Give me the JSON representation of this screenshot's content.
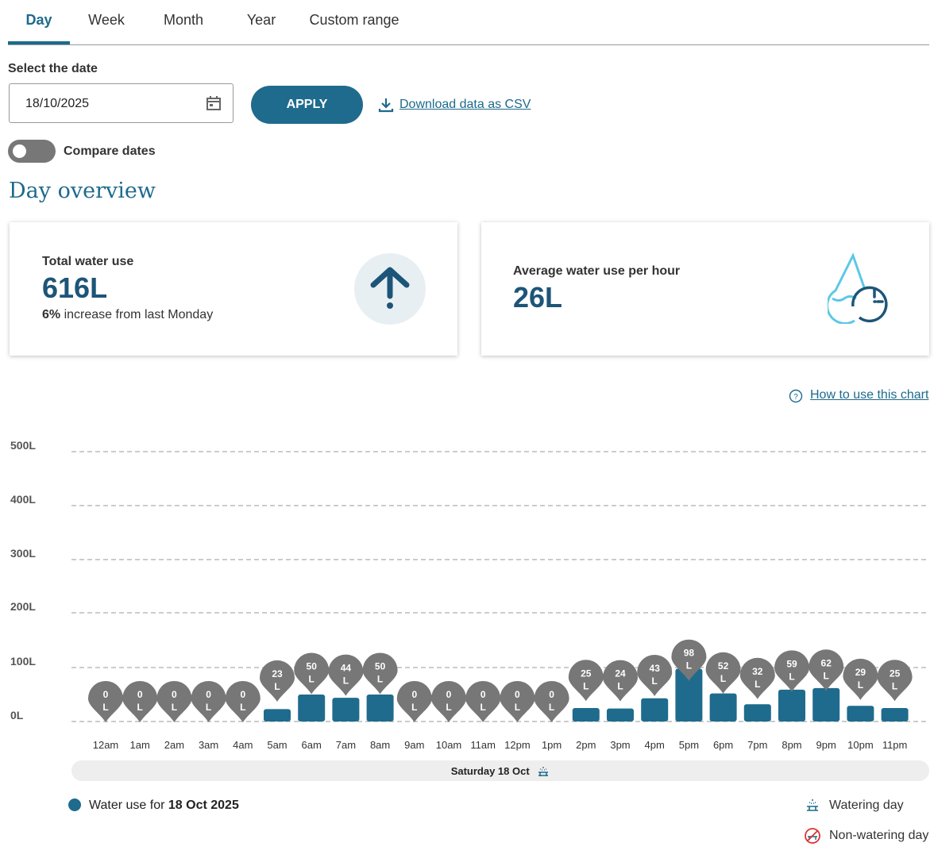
{
  "tabs": [
    "Day",
    "Week",
    "Month",
    "Year",
    "Custom range"
  ],
  "date_label": "Select the date",
  "date_value": "18/10/2025",
  "apply": "APPLY",
  "download": "Download data as CSV",
  "compare": "Compare dates",
  "heading": "Day overview",
  "card1": {
    "title": "Total water use",
    "value": "616L",
    "pct": "6%",
    "change": " increase from last Monday"
  },
  "card2": {
    "title": "Average water use per hour",
    "value": "26L"
  },
  "how": "How to use this chart",
  "chart_data": {
    "type": "bar",
    "categories": [
      "12am",
      "1am",
      "2am",
      "3am",
      "4am",
      "5am",
      "6am",
      "7am",
      "8am",
      "9am",
      "10am",
      "11am",
      "12pm",
      "1pm",
      "2pm",
      "3pm",
      "4pm",
      "5pm",
      "6pm",
      "7pm",
      "8pm",
      "9pm",
      "10pm",
      "11pm"
    ],
    "values": [
      0,
      0,
      0,
      0,
      0,
      23,
      50,
      44,
      50,
      0,
      0,
      0,
      0,
      0,
      25,
      24,
      43,
      98,
      52,
      32,
      59,
      62,
      29,
      25
    ],
    "unit": "L",
    "yticks": [
      "0L",
      "100L",
      "200L",
      "300L",
      "400L",
      "500L"
    ],
    "ylim": [
      0,
      500
    ],
    "xlabel": "Saturday 18 Oct",
    "color": "#1f6b8d"
  },
  "legend": {
    "prefix": "Water use for ",
    "date": "18 Oct 2025",
    "watering": "Watering day",
    "non_watering": "Non-watering day"
  }
}
